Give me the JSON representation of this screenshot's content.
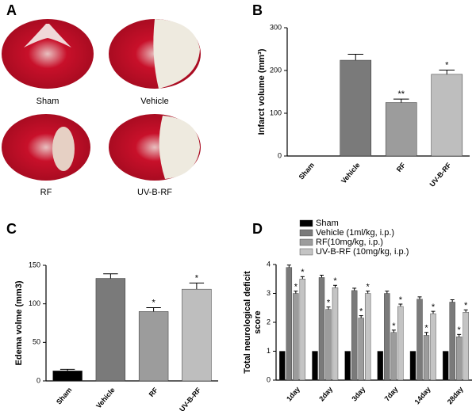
{
  "panel_a": {
    "panel": "A",
    "labels": [
      "Sham",
      "Vehicle",
      "RF",
      "UV-B-RF"
    ]
  },
  "chart_data": [
    {
      "type": "bar",
      "panel": "B",
      "ylabel": "Infarct volume (mm³)",
      "categories": [
        "Sham",
        "Vehicle",
        "RF",
        "UV-B-RF"
      ],
      "values": [
        0,
        224,
        125,
        191
      ],
      "errors": [
        0,
        14,
        8,
        10
      ],
      "colors": [
        "#000000",
        "#7a7a7a",
        "#9c9c9c",
        "#bebebe"
      ],
      "significance": [
        null,
        null,
        "**",
        "*"
      ],
      "ylim": [
        0,
        300
      ],
      "yticks": [
        0,
        100,
        200,
        300
      ]
    },
    {
      "type": "bar",
      "panel": "C",
      "ylabel": "Edema volme (mm3)",
      "categories": [
        "Sham",
        "Vehicle",
        "RF",
        "UV-B-RF"
      ],
      "values": [
        13,
        133,
        90,
        119
      ],
      "errors": [
        2,
        6,
        5,
        8
      ],
      "colors": [
        "#000000",
        "#7a7a7a",
        "#9c9c9c",
        "#bebebe"
      ],
      "significance": [
        null,
        null,
        "*",
        "*"
      ],
      "ylim": [
        0,
        150
      ],
      "yticks": [
        0,
        50,
        100,
        150
      ]
    },
    {
      "type": "grouped_bar",
      "panel": "D",
      "ylabel_lines": [
        "Total neurological deficit",
        "score"
      ],
      "categories": [
        "1day",
        "2day",
        "3day",
        "7day",
        "14day",
        "28day"
      ],
      "series": [
        {
          "name": "Sham",
          "color": "#000000",
          "values": [
            1,
            1,
            1,
            1,
            1,
            1
          ],
          "errors": [
            0,
            0,
            0,
            0,
            0,
            0
          ]
        },
        {
          "name": "Vehicle (1ml/kg, i.p.)",
          "color": "#7a7a7a",
          "values": [
            3.9,
            3.55,
            3.1,
            3.0,
            2.8,
            2.7
          ],
          "errors": [
            0.08,
            0.08,
            0.08,
            0.08,
            0.08,
            0.08
          ]
        },
        {
          "name": "RF(10mg/kg, i.p.)",
          "color": "#9c9c9c",
          "values": [
            3.0,
            2.45,
            2.15,
            1.65,
            1.55,
            1.5
          ],
          "errors": [
            0.08,
            0.08,
            0.08,
            0.08,
            0.1,
            0.08
          ],
          "significance": "*"
        },
        {
          "name": "UV-B-RF (10mg/kg, i.p.)",
          "color": "#c4c4c4",
          "values": [
            3.5,
            3.2,
            3.0,
            2.55,
            2.3,
            2.35
          ],
          "errors": [
            0.08,
            0.08,
            0.08,
            0.08,
            0.08,
            0.08
          ],
          "significance": "*"
        }
      ],
      "ylim": [
        0,
        4
      ],
      "yticks": [
        0,
        1,
        2,
        3,
        4
      ]
    }
  ]
}
